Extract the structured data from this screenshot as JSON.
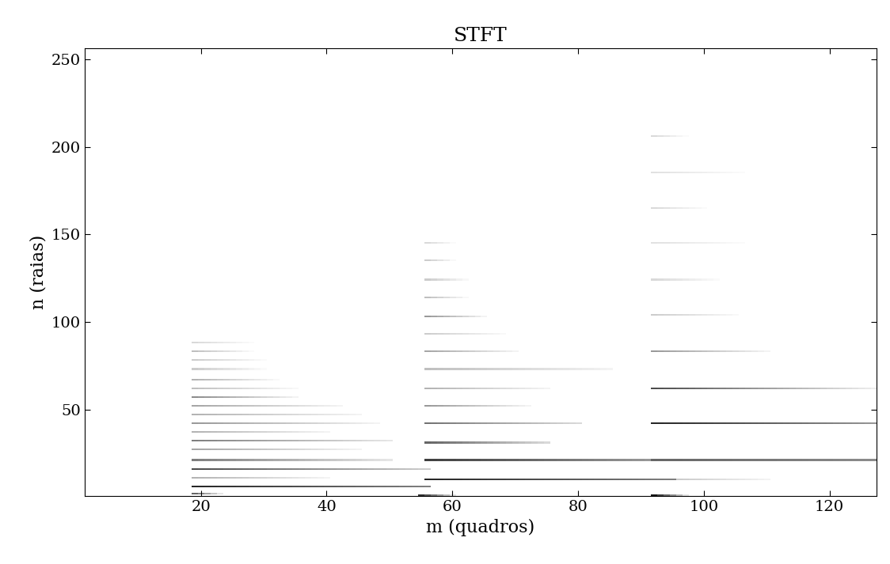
{
  "chart_data": {
    "type": "heatmap",
    "title": "STFT",
    "x_label": "m (quadros)",
    "y_label": "n (raias)",
    "xlim": [
      1.5,
      127.5
    ],
    "ylim": [
      0.5,
      256.5
    ],
    "xticks": [
      20,
      40,
      60,
      80,
      100,
      120
    ],
    "yticks": [
      50,
      100,
      150,
      200,
      250
    ],
    "frames": 128,
    "bins": 256,
    "color": "gray_r",
    "color_range": [
      0,
      1
    ],
    "partials": [
      {
        "bin": 2,
        "start": 19,
        "end": 23,
        "level_start": 0.6,
        "level_end": 0.1
      },
      {
        "bin": 6,
        "start": 19,
        "end": 56,
        "level_start": 0.85,
        "level_end": 0.5
      },
      {
        "bin": 11,
        "start": 19,
        "end": 40,
        "level_start": 0.3,
        "level_end": 0.05
      },
      {
        "bin": 16,
        "start": 19,
        "end": 56,
        "level_start": 0.7,
        "level_end": 0.2
      },
      {
        "bin": 21,
        "start": 19,
        "end": 50,
        "level_start": 0.5,
        "level_end": 0.1
      },
      {
        "bin": 27,
        "start": 19,
        "end": 45,
        "level_start": 0.35,
        "level_end": 0.05
      },
      {
        "bin": 32,
        "start": 19,
        "end": 50,
        "level_start": 0.5,
        "level_end": 0.1
      },
      {
        "bin": 37,
        "start": 19,
        "end": 40,
        "level_start": 0.3,
        "level_end": 0.05
      },
      {
        "bin": 42,
        "start": 19,
        "end": 48,
        "level_start": 0.4,
        "level_end": 0.05
      },
      {
        "bin": 47,
        "start": 19,
        "end": 45,
        "level_start": 0.3,
        "level_end": 0.05
      },
      {
        "bin": 52,
        "start": 19,
        "end": 42,
        "level_start": 0.35,
        "level_end": 0.05
      },
      {
        "bin": 57,
        "start": 19,
        "end": 35,
        "level_start": 0.45,
        "level_end": 0.05
      },
      {
        "bin": 62,
        "start": 19,
        "end": 35,
        "level_start": 0.25,
        "level_end": 0.03
      },
      {
        "bin": 67,
        "start": 19,
        "end": 32,
        "level_start": 0.3,
        "level_end": 0.03
      },
      {
        "bin": 73,
        "start": 19,
        "end": 30,
        "level_start": 0.2,
        "level_end": 0.02
      },
      {
        "bin": 78,
        "start": 19,
        "end": 30,
        "level_start": 0.2,
        "level_end": 0.02
      },
      {
        "bin": 83,
        "start": 19,
        "end": 28,
        "level_start": 0.25,
        "level_end": 0.02
      },
      {
        "bin": 88,
        "start": 19,
        "end": 28,
        "level_start": 0.15,
        "level_end": 0.02
      },
      {
        "bin": 1,
        "start": 55,
        "end": 60,
        "level_start": 0.8,
        "level_end": 0.1
      },
      {
        "bin": 10,
        "start": 56,
        "end": 95,
        "level_start": 0.85,
        "level_end": 0.5
      },
      {
        "bin": 21,
        "start": 56,
        "end": 92,
        "level_start": 0.75,
        "level_end": 0.4
      },
      {
        "bin": 31,
        "start": 56,
        "end": 75,
        "level_start": 0.6,
        "level_end": 0.15
      },
      {
        "bin": 42,
        "start": 56,
        "end": 80,
        "level_start": 0.55,
        "level_end": 0.15
      },
      {
        "bin": 52,
        "start": 56,
        "end": 72,
        "level_start": 0.4,
        "level_end": 0.05
      },
      {
        "bin": 62,
        "start": 56,
        "end": 75,
        "level_start": 0.3,
        "level_end": 0.05
      },
      {
        "bin": 73,
        "start": 56,
        "end": 85,
        "level_start": 0.25,
        "level_end": 0.05
      },
      {
        "bin": 83,
        "start": 56,
        "end": 70,
        "level_start": 0.35,
        "level_end": 0.05
      },
      {
        "bin": 93,
        "start": 56,
        "end": 68,
        "level_start": 0.2,
        "level_end": 0.03
      },
      {
        "bin": 103,
        "start": 56,
        "end": 65,
        "level_start": 0.4,
        "level_end": 0.05
      },
      {
        "bin": 114,
        "start": 56,
        "end": 62,
        "level_start": 0.25,
        "level_end": 0.03
      },
      {
        "bin": 124,
        "start": 56,
        "end": 62,
        "level_start": 0.2,
        "level_end": 0.03
      },
      {
        "bin": 135,
        "start": 56,
        "end": 60,
        "level_start": 0.2,
        "level_end": 0.03
      },
      {
        "bin": 145,
        "start": 56,
        "end": 60,
        "level_start": 0.15,
        "level_end": 0.02
      },
      {
        "bin": 1,
        "start": 92,
        "end": 97,
        "level_start": 0.9,
        "level_end": 0.1
      },
      {
        "bin": 10,
        "start": 92,
        "end": 110,
        "level_start": 0.25,
        "level_end": 0.05
      },
      {
        "bin": 21,
        "start": 92,
        "end": 128,
        "level_start": 0.6,
        "level_end": 0.45
      },
      {
        "bin": 42,
        "start": 92,
        "end": 128,
        "level_start": 0.85,
        "level_end": 0.4
      },
      {
        "bin": 62,
        "start": 92,
        "end": 128,
        "level_start": 0.7,
        "level_end": 0.05
      },
      {
        "bin": 83,
        "start": 92,
        "end": 110,
        "level_start": 0.4,
        "level_end": 0.05
      },
      {
        "bin": 104,
        "start": 92,
        "end": 105,
        "level_start": 0.2,
        "level_end": 0.03
      },
      {
        "bin": 124,
        "start": 92,
        "end": 102,
        "level_start": 0.15,
        "level_end": 0.02
      },
      {
        "bin": 145,
        "start": 92,
        "end": 106,
        "level_start": 0.12,
        "level_end": 0.02
      },
      {
        "bin": 165,
        "start": 92,
        "end": 100,
        "level_start": 0.15,
        "level_end": 0.02
      },
      {
        "bin": 185,
        "start": 92,
        "end": 106,
        "level_start": 0.12,
        "level_end": 0.02
      },
      {
        "bin": 206,
        "start": 92,
        "end": 97,
        "level_start": 0.15,
        "level_end": 0.02
      }
    ]
  }
}
